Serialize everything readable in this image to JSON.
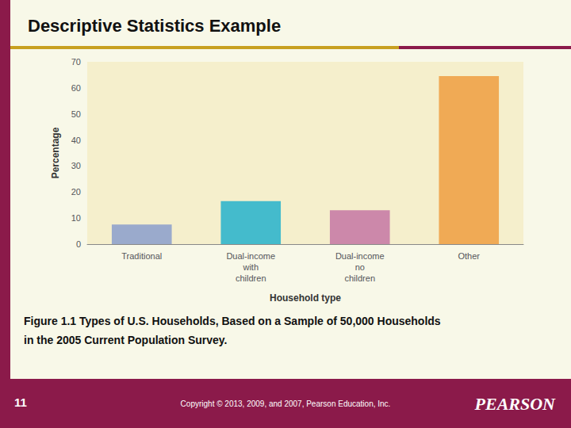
{
  "chart_data": {
    "type": "bar",
    "title": "Descriptive Statistics Example",
    "xlabel": "Household type",
    "ylabel": "Percentage",
    "categories": [
      "Traditional",
      "Dual-income\nwith\nchildren",
      "Dual-income\nno\nchildren",
      "Other"
    ],
    "values": [
      7.5,
      16.5,
      13.0,
      64.5
    ],
    "colors": [
      "#9aaacc",
      "#44bbcc",
      "#cc88aa",
      "#f0aa55"
    ],
    "ylim": [
      0,
      70
    ],
    "yticks": [
      0,
      10,
      20,
      30,
      40,
      50,
      60,
      70
    ],
    "grid": false,
    "annotations": [
      "Figure 1.1 Types of U.S. Households, Based on a Sample of 50,000 Households",
      "in the 2005 Current Population Survey.",
      "11",
      "Copyright © 2013, 2009, and 2007, Pearson Education, Inc.",
      "PEARSON"
    ]
  }
}
